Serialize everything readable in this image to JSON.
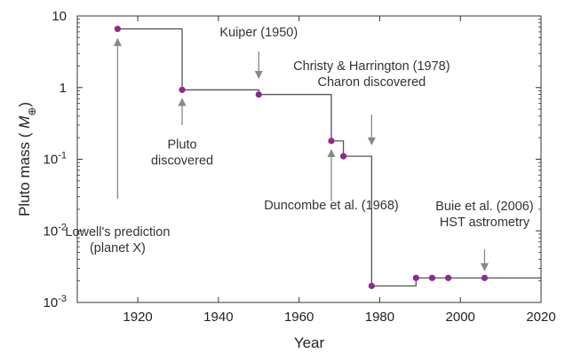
{
  "chart_data": {
    "type": "line",
    "step": "post",
    "xlabel": "Year",
    "ylabel": "Pluto mass (",
    "ylabel_symbol": "M",
    "ylabel_subscript": "⊕",
    "ylabel_close": ")",
    "xlim": [
      1905,
      2020
    ],
    "ylim": [
      0.001,
      10
    ],
    "yscale": "log",
    "grid": false,
    "x_ticks": [
      1920,
      1940,
      1960,
      1980,
      2000,
      2020
    ],
    "x_tick_labels": [
      "1920",
      "1940",
      "1960",
      "1980",
      "2000",
      "2020"
    ],
    "y_ticks": [
      {
        "value": 10,
        "base": "10",
        "exp": ""
      },
      {
        "value": 1,
        "base": "1",
        "exp": ""
      },
      {
        "value": 0.1,
        "base": "10",
        "exp": "-1"
      },
      {
        "value": 0.01,
        "base": "10",
        "exp": "-2"
      },
      {
        "value": 0.001,
        "base": "10",
        "exp": "-3"
      }
    ],
    "series": [
      {
        "color": "#8b2c8b",
        "line_color": "#555555",
        "end_x": 2020,
        "points": [
          {
            "x": 1915,
            "y": 6.6
          },
          {
            "x": 1931,
            "y": 0.93
          },
          {
            "x": 1950,
            "y": 0.8
          },
          {
            "x": 1968,
            "y": 0.18
          },
          {
            "x": 1971,
            "y": 0.11
          },
          {
            "x": 1978,
            "y": 0.0017
          },
          {
            "x": 1989,
            "y": 0.0022
          },
          {
            "x": 1993,
            "y": 0.0022
          },
          {
            "x": 1997,
            "y": 0.0022
          },
          {
            "x": 2006,
            "y": 0.0022
          }
        ]
      }
    ],
    "annotations": [
      {
        "lines": [
          "Lowell's prediction",
          "(planet X)"
        ],
        "arrow_x": 1915,
        "arrow_from_y": 0.028,
        "arrow_to_y": 4.8,
        "direction": "up",
        "text_x": 1915,
        "text_y": 0.0085
      },
      {
        "lines": [
          "Pluto",
          "discovered"
        ],
        "arrow_x": 1931,
        "arrow_from_y": 0.3,
        "arrow_to_y": 0.7,
        "direction": "up",
        "text_x": 1931,
        "text_y": 0.14
      },
      {
        "lines": [
          "Kuiper (1950)"
        ],
        "arrow_x": 1950,
        "arrow_from_y": 3.2,
        "arrow_to_y": 1.35,
        "direction": "down",
        "text_x": 1950,
        "text_y": 5.2
      },
      {
        "lines": [
          "Christy & Harrington (1978)",
          "Charon discovered"
        ],
        "arrow_x": 1978,
        "arrow_from_y": 0.42,
        "arrow_to_y": 0.16,
        "direction": "down",
        "text_x": 1978,
        "text_y": 1.75
      },
      {
        "lines": [
          "Duncombe et al. (1968)"
        ],
        "arrow_x": 1968,
        "arrow_from_y": 0.026,
        "arrow_to_y": 0.135,
        "direction": "up",
        "text_x": 1968,
        "text_y": 0.02
      },
      {
        "lines": [
          "Buie et al. (2006)",
          "HST astrometry"
        ],
        "arrow_x": 2006,
        "arrow_from_y": 0.0055,
        "arrow_to_y": 0.0028,
        "direction": "down",
        "text_x": 2006,
        "text_y": 0.0195
      }
    ]
  }
}
